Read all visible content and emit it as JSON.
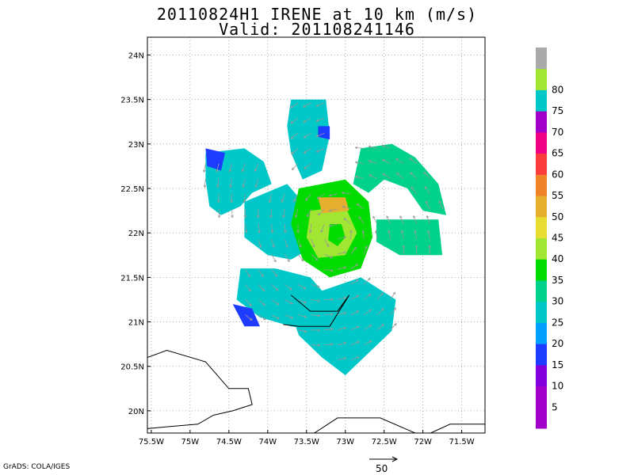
{
  "header": {
    "title": "20110824H1 IRENE at 10 km (m/s)",
    "subtitle": "Valid: 201108241146"
  },
  "footer": {
    "credit": "GrADS: COLA/IGES",
    "vector_scale_label": "50"
  },
  "chart_data": {
    "type": "heatmap",
    "title": "20110824H1 IRENE at 10 km (m/s)",
    "subtitle": "Valid: 201108241146",
    "x_range": [
      -75.55,
      -71.2
    ],
    "y_range": [
      19.75,
      24.2
    ],
    "x_ticks": [
      {
        "value": -75.5,
        "label": "75.5W"
      },
      {
        "value": -75.0,
        "label": "75W"
      },
      {
        "value": -74.5,
        "label": "74.5W"
      },
      {
        "value": -74.0,
        "label": "74W"
      },
      {
        "value": -73.5,
        "label": "73.5W"
      },
      {
        "value": -73.0,
        "label": "73W"
      },
      {
        "value": -72.5,
        "label": "72.5W"
      },
      {
        "value": -72.0,
        "label": "72W"
      },
      {
        "value": -71.5,
        "label": "71.5W"
      }
    ],
    "y_ticks": [
      {
        "value": 20.0,
        "label": "20N"
      },
      {
        "value": 20.5,
        "label": "20.5N"
      },
      {
        "value": 21.0,
        "label": "21N"
      },
      {
        "value": 21.5,
        "label": "21.5N"
      },
      {
        "value": 22.0,
        "label": "22N"
      },
      {
        "value": 22.5,
        "label": "22.5N"
      },
      {
        "value": 23.0,
        "label": "23N"
      },
      {
        "value": 23.5,
        "label": "23.5N"
      },
      {
        "value": 24.0,
        "label": "24N"
      }
    ],
    "grid": true,
    "storm_center": {
      "lon": -73.1,
      "lat": 21.98
    },
    "colorbar": {
      "position": "right",
      "levels": [
        {
          "label": "",
          "color": "#a000c8"
        },
        {
          "label": "5",
          "color": "#a000c8"
        },
        {
          "label": "10",
          "color": "#8200dc"
        },
        {
          "label": "15",
          "color": "#1e3cff"
        },
        {
          "label": "20",
          "color": "#00a0ff"
        },
        {
          "label": "25",
          "color": "#00c8c8"
        },
        {
          "label": "30",
          "color": "#00d28c"
        },
        {
          "label": "35",
          "color": "#00dc00"
        },
        {
          "label": "40",
          "color": "#a0e632"
        },
        {
          "label": "45",
          "color": "#e6dc32"
        },
        {
          "label": "50",
          "color": "#e6af2d"
        },
        {
          "label": "55",
          "color": "#f08228"
        },
        {
          "label": "60",
          "color": "#fa3c3c"
        },
        {
          "label": "65",
          "color": "#f00082"
        },
        {
          "label": "70",
          "color": "#a000c8"
        },
        {
          "label": "75",
          "color": "#00c8c8"
        },
        {
          "label": "80",
          "color": "#a0e632"
        },
        {
          "label": "",
          "color": "#aaaaaa"
        }
      ]
    },
    "regions": [
      {
        "name": "nw-band",
        "ring": [
          [
            -74.8,
            22.9
          ],
          [
            -74.3,
            22.95
          ],
          [
            -74.05,
            22.8
          ],
          [
            -73.95,
            22.55
          ],
          [
            -74.2,
            22.45
          ],
          [
            -74.35,
            22.3
          ],
          [
            -74.6,
            22.2
          ],
          [
            -74.75,
            22.3
          ],
          [
            -74.8,
            22.6
          ]
        ],
        "value": 20
      },
      {
        "name": "n-band",
        "ring": [
          [
            -73.7,
            23.5
          ],
          [
            -73.25,
            23.5
          ],
          [
            -73.2,
            23.1
          ],
          [
            -73.3,
            22.7
          ],
          [
            -73.55,
            22.6
          ],
          [
            -73.7,
            22.9
          ],
          [
            -73.75,
            23.2
          ]
        ],
        "value": 24
      },
      {
        "name": "ne-band",
        "ring": [
          [
            -72.8,
            22.95
          ],
          [
            -72.4,
            23.0
          ],
          [
            -72.1,
            22.85
          ],
          [
            -71.8,
            22.55
          ],
          [
            -71.7,
            22.2
          ],
          [
            -72.0,
            22.25
          ],
          [
            -72.2,
            22.5
          ],
          [
            -72.5,
            22.6
          ],
          [
            -72.7,
            22.45
          ],
          [
            -72.9,
            22.55
          ]
        ],
        "value": 27
      },
      {
        "name": "e-band",
        "ring": [
          [
            -72.6,
            22.15
          ],
          [
            -71.8,
            22.15
          ],
          [
            -71.75,
            21.75
          ],
          [
            -72.3,
            21.75
          ],
          [
            -72.6,
            21.9
          ]
        ],
        "value": 26
      },
      {
        "name": "w-band",
        "ring": [
          [
            -74.3,
            22.35
          ],
          [
            -73.75,
            22.55
          ],
          [
            -73.5,
            22.3
          ],
          [
            -73.5,
            21.8
          ],
          [
            -73.7,
            21.7
          ],
          [
            -74.0,
            21.75
          ],
          [
            -74.3,
            21.95
          ]
        ],
        "value": 21
      },
      {
        "name": "sw-band",
        "ring": [
          [
            -74.35,
            21.6
          ],
          [
            -73.9,
            21.6
          ],
          [
            -73.45,
            21.5
          ],
          [
            -73.15,
            21.2
          ],
          [
            -73.3,
            20.9
          ],
          [
            -73.7,
            20.95
          ],
          [
            -74.1,
            21.05
          ],
          [
            -74.4,
            21.25
          ]
        ],
        "value": 21
      },
      {
        "name": "s-band",
        "ring": [
          [
            -73.3,
            21.35
          ],
          [
            -72.8,
            21.5
          ],
          [
            -72.35,
            21.25
          ],
          [
            -72.4,
            20.9
          ],
          [
            -72.7,
            20.65
          ],
          [
            -73.0,
            20.4
          ],
          [
            -73.3,
            20.6
          ],
          [
            -73.6,
            20.85
          ],
          [
            -73.7,
            21.1
          ]
        ],
        "value": 22
      },
      {
        "name": "core",
        "ring": [
          [
            -73.6,
            22.5
          ],
          [
            -73.0,
            22.6
          ],
          [
            -72.7,
            22.35
          ],
          [
            -72.65,
            21.95
          ],
          [
            -72.8,
            21.6
          ],
          [
            -73.2,
            21.5
          ],
          [
            -73.55,
            21.7
          ],
          [
            -73.7,
            22.1
          ]
        ],
        "value": 33
      },
      {
        "name": "eyewall",
        "ring": [
          [
            -73.45,
            22.25
          ],
          [
            -73.0,
            22.3
          ],
          [
            -72.85,
            22.0
          ],
          [
            -73.0,
            21.75
          ],
          [
            -73.35,
            21.72
          ],
          [
            -73.5,
            21.95
          ]
        ],
        "value": 39
      },
      {
        "name": "max-wind",
        "ring": [
          [
            -73.35,
            22.4
          ],
          [
            -73.0,
            22.4
          ],
          [
            -72.95,
            22.25
          ],
          [
            -73.3,
            22.22
          ]
        ],
        "value": 45
      },
      {
        "name": "eye",
        "ring": [
          [
            -73.2,
            22.1
          ],
          [
            -73.05,
            22.1
          ],
          [
            -73.0,
            21.95
          ],
          [
            -73.1,
            21.85
          ],
          [
            -73.22,
            21.92
          ]
        ],
        "value": 30
      },
      {
        "name": "blue-1",
        "ring": [
          [
            -74.8,
            22.95
          ],
          [
            -74.55,
            22.9
          ],
          [
            -74.6,
            22.7
          ],
          [
            -74.78,
            22.75
          ]
        ],
        "value": 13
      },
      {
        "name": "blue-2",
        "ring": [
          [
            -74.45,
            21.2
          ],
          [
            -74.2,
            21.15
          ],
          [
            -74.1,
            20.95
          ],
          [
            -74.3,
            20.95
          ]
        ],
        "value": 13
      },
      {
        "name": "blue-3",
        "ring": [
          [
            -73.35,
            23.2
          ],
          [
            -73.2,
            23.2
          ],
          [
            -73.2,
            23.05
          ],
          [
            -73.35,
            23.08
          ]
        ],
        "value": 13
      }
    ],
    "coastlines": [
      [
        [
          -75.55,
          20.6
        ],
        [
          -75.3,
          20.68
        ],
        [
          -74.8,
          20.55
        ],
        [
          -74.5,
          20.25
        ],
        [
          -74.25,
          20.25
        ],
        [
          -74.2,
          20.07
        ],
        [
          -74.45,
          20.0
        ],
        [
          -74.7,
          19.95
        ],
        [
          -74.9,
          19.85
        ],
        [
          -75.3,
          19.82
        ],
        [
          -75.55,
          19.8
        ]
      ],
      [
        [
          -73.4,
          19.75
        ],
        [
          -73.1,
          19.92
        ],
        [
          -72.55,
          19.92
        ],
        [
          -72.1,
          19.75
        ]
      ],
      [
        [
          -71.9,
          19.75
        ],
        [
          -71.65,
          19.85
        ],
        [
          -71.2,
          19.85
        ]
      ],
      [
        [
          -73.7,
          21.3
        ],
        [
          -73.45,
          21.12
        ],
        [
          -73.1,
          21.12
        ],
        [
          -72.95,
          21.3
        ],
        [
          -73.2,
          20.95
        ],
        [
          -73.6,
          20.95
        ],
        [
          -73.8,
          20.97
        ]
      ]
    ]
  }
}
